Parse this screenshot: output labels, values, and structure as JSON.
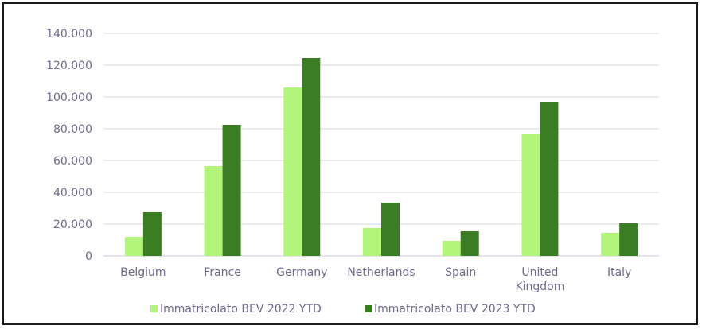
{
  "chart_data": {
    "type": "bar",
    "categories": [
      "Belgium",
      "France",
      "Germany",
      "Netherlands",
      "Spain",
      "United Kingdom",
      "Italy"
    ],
    "category_lines": [
      [
        "Belgium"
      ],
      [
        "France"
      ],
      [
        "Germany"
      ],
      [
        "Netherlands"
      ],
      [
        "Spain"
      ],
      [
        "United",
        "Kingdom"
      ],
      [
        "Italy"
      ]
    ],
    "series": [
      {
        "name": "Immatricolato BEV 2022 YTD",
        "color": "#b2f57a",
        "values": [
          12000,
          56500,
          106000,
          17500,
          9500,
          77000,
          14500
        ]
      },
      {
        "name": "Immatricolato BEV 2023 YTD",
        "color": "#3a7d22",
        "values": [
          27500,
          82500,
          124500,
          33500,
          15500,
          97000,
          20500
        ]
      }
    ],
    "ylim": [
      0,
      140000
    ],
    "yticks": [
      0,
      20000,
      40000,
      60000,
      80000,
      100000,
      120000,
      140000
    ],
    "ytick_labels": [
      "0",
      "20.000",
      "40.000",
      "60.000",
      "80.000",
      "100.000",
      "120.000",
      "140.000"
    ],
    "grid": true,
    "legend_position": "bottom",
    "title": "",
    "xlabel": "",
    "ylabel": ""
  }
}
